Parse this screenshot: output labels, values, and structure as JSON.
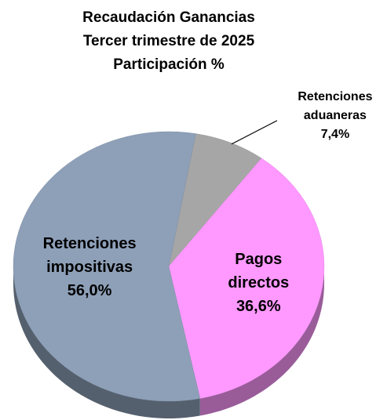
{
  "chart_data": {
    "type": "pie",
    "title": [
      "Recaudación Ganancias",
      "Tercer trimestre de 2025",
      "Participación %"
    ],
    "categories": [
      "Retenciones aduaneras",
      "Pagos directos",
      "Retenciones impositivas"
    ],
    "values": [
      7.4,
      36.6,
      56.0
    ],
    "value_labels": [
      "7,4%",
      "36,6%",
      "56,0%"
    ],
    "colors": [
      "#a6a6a6",
      "#ff99ff",
      "#8ea0b8"
    ]
  }
}
